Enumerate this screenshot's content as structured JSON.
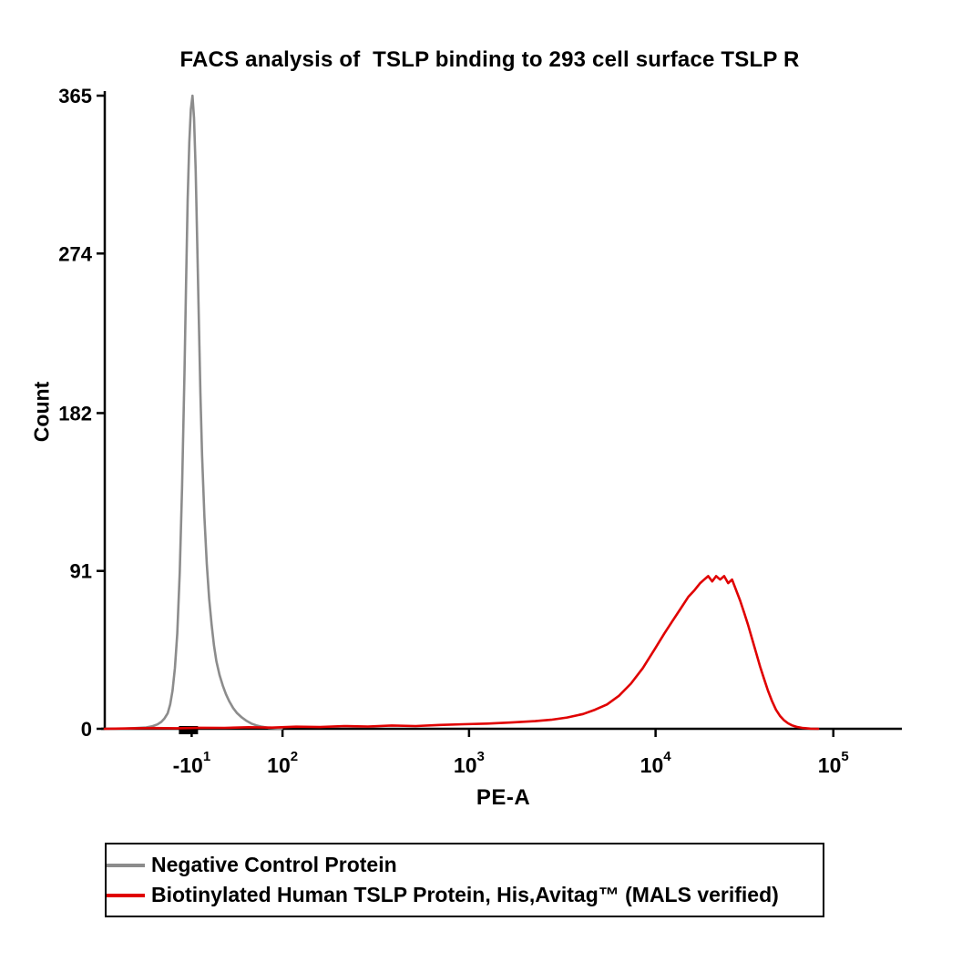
{
  "chart_data": {
    "type": "line",
    "subtype": "flow-cytometry-histogram",
    "title": "FACS analysis of  TSLP binding to 293 cell surface TSLP R",
    "xlabel": "PE-A",
    "ylabel": "Count",
    "ylim": [
      0,
      365
    ],
    "y_ticks": [
      0,
      91,
      182,
      274,
      365
    ],
    "x_scale": "biexponential-log",
    "grid": false,
    "legend_position": "bottom-outside-boxed",
    "x_ticks": [
      {
        "mantissa": "-10",
        "exponent": "1",
        "frac": 0.109
      },
      {
        "mantissa": "10",
        "exponent": "2",
        "frac": 0.223
      },
      {
        "mantissa": "10",
        "exponent": "3",
        "frac": 0.457
      },
      {
        "mantissa": "10",
        "exponent": "4",
        "frac": 0.691
      },
      {
        "mantissa": "10",
        "exponent": "5",
        "frac": 0.914
      }
    ],
    "bold_tick": {
      "from": 0.093,
      "to": 0.117
    },
    "series": [
      {
        "name": "Negative Control Protein",
        "color": "#8c8c8c",
        "peak": {
          "frac": 0.11,
          "count": 365
        },
        "points": [
          [
            0.0,
            0
          ],
          [
            0.02,
            0
          ],
          [
            0.04,
            0.4
          ],
          [
            0.052,
            0.8
          ],
          [
            0.06,
            1.5
          ],
          [
            0.066,
            2.5
          ],
          [
            0.071,
            4
          ],
          [
            0.075,
            6
          ],
          [
            0.079,
            9
          ],
          [
            0.082,
            14
          ],
          [
            0.085,
            22
          ],
          [
            0.088,
            35
          ],
          [
            0.091,
            55
          ],
          [
            0.094,
            90
          ],
          [
            0.097,
            140
          ],
          [
            0.1,
            205
          ],
          [
            0.102,
            258
          ],
          [
            0.104,
            305
          ],
          [
            0.106,
            338
          ],
          [
            0.108,
            357
          ],
          [
            0.11,
            365
          ],
          [
            0.112,
            352
          ],
          [
            0.114,
            322
          ],
          [
            0.116,
            280
          ],
          [
            0.118,
            235
          ],
          [
            0.12,
            193
          ],
          [
            0.122,
            158
          ],
          [
            0.125,
            122
          ],
          [
            0.128,
            95
          ],
          [
            0.131,
            75
          ],
          [
            0.134,
            60
          ],
          [
            0.137,
            48
          ],
          [
            0.14,
            39
          ],
          [
            0.144,
            31
          ],
          [
            0.148,
            25
          ],
          [
            0.152,
            20
          ],
          [
            0.156,
            16
          ],
          [
            0.161,
            12
          ],
          [
            0.166,
            9
          ],
          [
            0.172,
            6.5
          ],
          [
            0.178,
            4.5
          ],
          [
            0.184,
            3
          ],
          [
            0.19,
            2
          ],
          [
            0.197,
            1.2
          ],
          [
            0.205,
            0.6
          ],
          [
            0.215,
            0.2
          ],
          [
            0.222,
            0
          ]
        ]
      },
      {
        "name": "Biotinylated Human TSLP Protein, His,Avitag™ (MALS verified)",
        "color": "#e00000",
        "peak": {
          "frac": 0.775,
          "count": 88
        },
        "points": [
          [
            0.0,
            0
          ],
          [
            0.03,
            0.2
          ],
          [
            0.06,
            0.4
          ],
          [
            0.09,
            0.3
          ],
          [
            0.12,
            0.6
          ],
          [
            0.15,
            0.5
          ],
          [
            0.18,
            0.9
          ],
          [
            0.21,
            0.7
          ],
          [
            0.24,
            1.2
          ],
          [
            0.27,
            1.0
          ],
          [
            0.3,
            1.6
          ],
          [
            0.33,
            1.3
          ],
          [
            0.36,
            1.9
          ],
          [
            0.39,
            1.6
          ],
          [
            0.42,
            2.2
          ],
          [
            0.45,
            2.6
          ],
          [
            0.48,
            3.0
          ],
          [
            0.51,
            3.6
          ],
          [
            0.54,
            4.4
          ],
          [
            0.56,
            5.2
          ],
          [
            0.58,
            6.5
          ],
          [
            0.6,
            8.5
          ],
          [
            0.615,
            11
          ],
          [
            0.63,
            14
          ],
          [
            0.645,
            19
          ],
          [
            0.66,
            26
          ],
          [
            0.675,
            35
          ],
          [
            0.69,
            46
          ],
          [
            0.702,
            55
          ],
          [
            0.712,
            62
          ],
          [
            0.722,
            69
          ],
          [
            0.732,
            76
          ],
          [
            0.74,
            80
          ],
          [
            0.747,
            84
          ],
          [
            0.752,
            86
          ],
          [
            0.757,
            88
          ],
          [
            0.762,
            85
          ],
          [
            0.767,
            88
          ],
          [
            0.772,
            86
          ],
          [
            0.777,
            88
          ],
          [
            0.782,
            84
          ],
          [
            0.787,
            86
          ],
          [
            0.792,
            80
          ],
          [
            0.797,
            74
          ],
          [
            0.802,
            67
          ],
          [
            0.807,
            60
          ],
          [
            0.812,
            52
          ],
          [
            0.817,
            44
          ],
          [
            0.822,
            36
          ],
          [
            0.827,
            29
          ],
          [
            0.832,
            22
          ],
          [
            0.837,
            16
          ],
          [
            0.842,
            11
          ],
          [
            0.847,
            7.5
          ],
          [
            0.852,
            5
          ],
          [
            0.857,
            3.2
          ],
          [
            0.862,
            2
          ],
          [
            0.868,
            1.1
          ],
          [
            0.875,
            0.5
          ],
          [
            0.885,
            0.1
          ],
          [
            0.895,
            0
          ]
        ]
      }
    ]
  },
  "legend": {
    "entries": [
      {
        "label": "Negative Control Protein",
        "color": "#8c8c8c"
      },
      {
        "label": "Biotinylated Human TSLP Protein, His,Avitag™ (MALS verified)",
        "color": "#e00000"
      }
    ]
  },
  "colors": {
    "axis": "#000000",
    "background": "#ffffff",
    "negative_control": "#8c8c8c",
    "tslp_protein": "#e00000"
  }
}
